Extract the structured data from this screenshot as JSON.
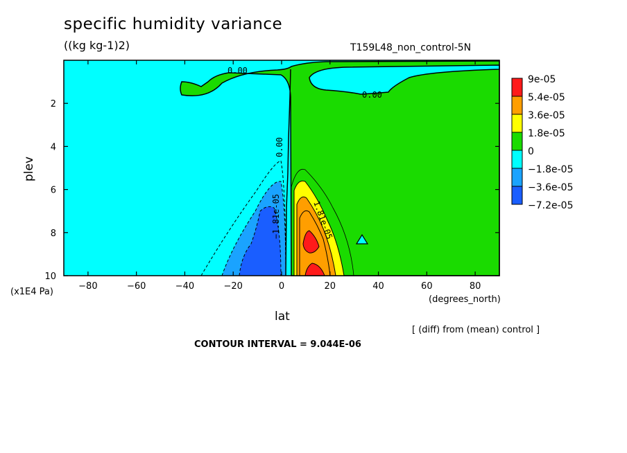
{
  "chart_data": {
    "type": "heatmap",
    "title": "specific humidity variance",
    "units": "((kg kg-1)2)",
    "run_label": "T159L48_non_control-5N",
    "xlabel": "lat",
    "x_unit": "(degrees_north)",
    "ylabel": "plev",
    "y_unit": "(x1E4 Pa)",
    "xlim": [
      -90,
      90
    ],
    "ylim": [
      10,
      0
    ],
    "x_ticks": [
      -80,
      -60,
      -40,
      -20,
      0,
      20,
      40,
      60,
      80
    ],
    "x_tick_labels": [
      "−80",
      "−60",
      "−40",
      "−20",
      "0",
      "20",
      "40",
      "60",
      "80"
    ],
    "y_ticks": [
      2,
      4,
      6,
      8,
      10
    ],
    "y_tick_labels": [
      "2",
      "4",
      "6",
      "8",
      "10"
    ],
    "note": "[ (diff) from (mean) control ]",
    "contour_interval": "CONTOUR INTERVAL = 9.044E-06",
    "legend": [
      {
        "label": "9e-05",
        "color": "#ff1a1a"
      },
      {
        "label": "5.4e-05",
        "color": "#ff9e00"
      },
      {
        "label": "3.6e-05",
        "color": "#ffff00"
      },
      {
        "label": "1.8e-05",
        "color": "#1adb00"
      },
      {
        "label": "0",
        "color": "#00ffff"
      },
      {
        "label": "−1.8e-05",
        "color": "#1aa3ff"
      },
      {
        "label": "−3.6e-05",
        "color": "#1a5eff"
      },
      {
        "label": "−7.2e-05",
        "color": ""
      }
    ],
    "contour_labels": [
      "0.00",
      "0.00",
      "0.00",
      "−1.81e-05",
      "1.81e-05"
    ]
  }
}
